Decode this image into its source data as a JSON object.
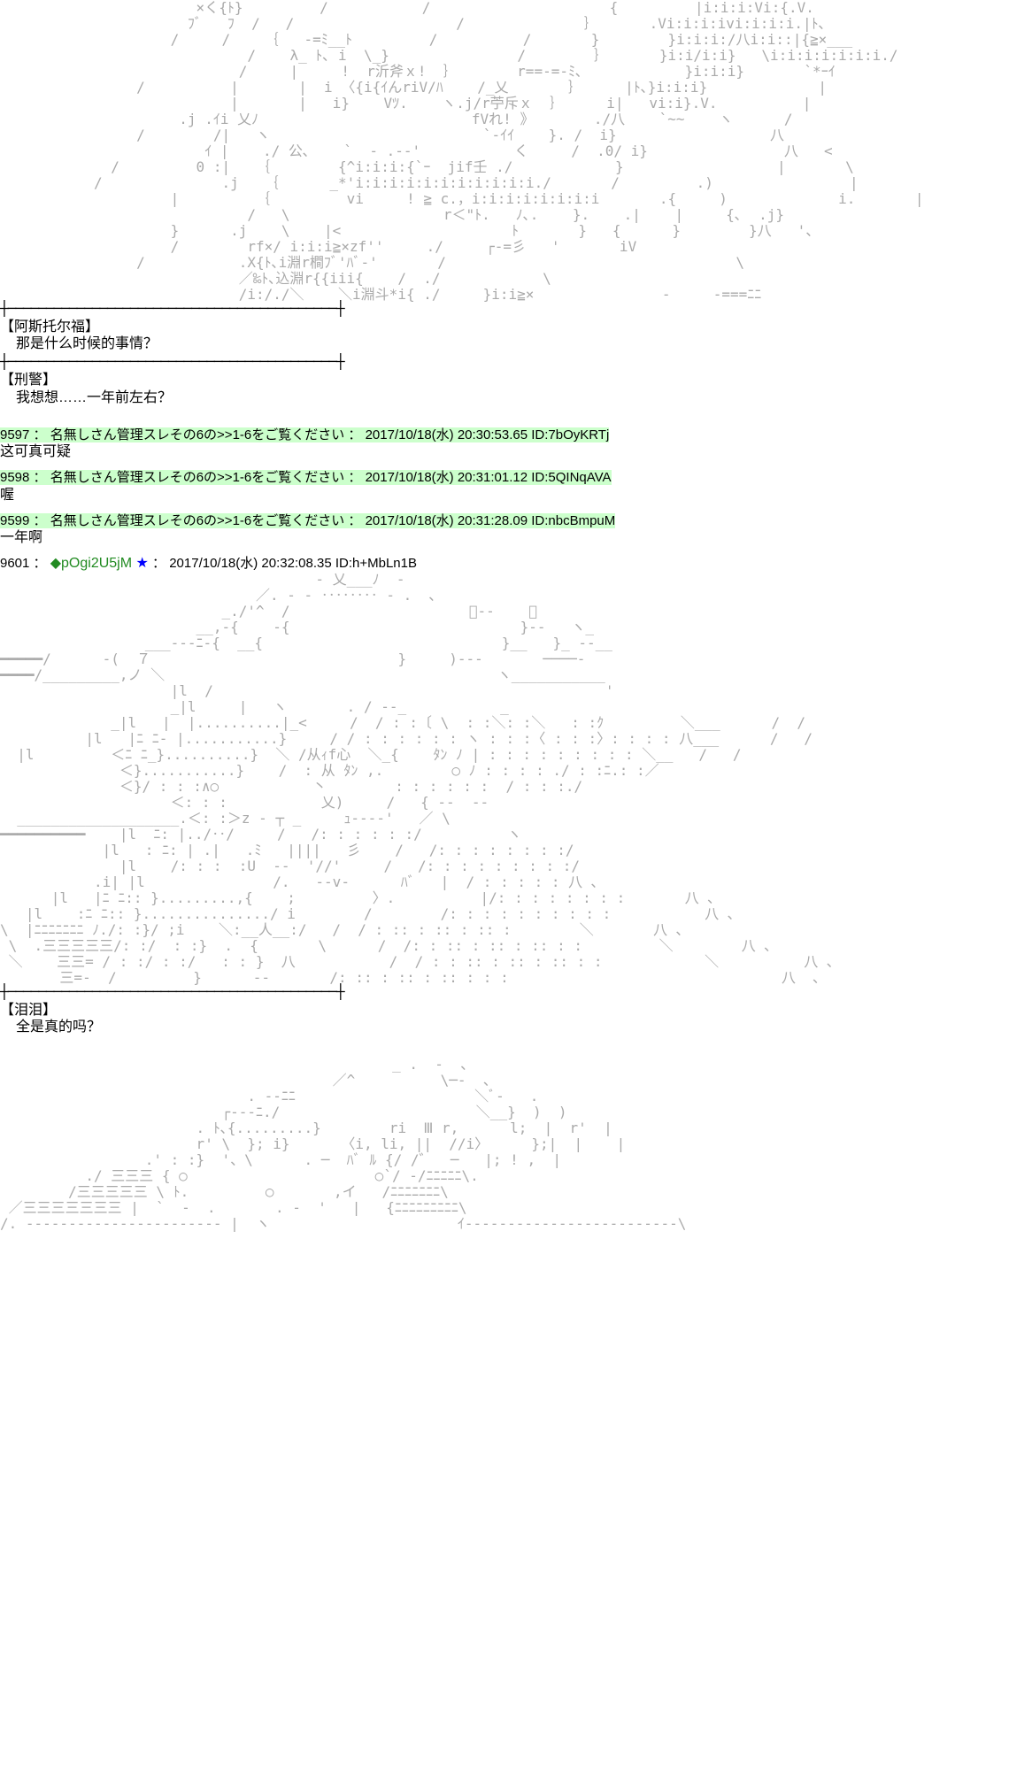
{
  "aa1": "                       ×く{ﾄ}         /           /                     {         |i:i:i:Vi:{.V.\n                      ﾌﾞ   ﾌ  /   /                   /              ｝      .Vi:i:i:ivi:i:i:i.|ﾄ､\n                    /     /    ｛   -=ﾐ__ﾄ         /          /       }        }i:i:i:/八i:i::|{≧×___\n                             /    λ_ ﾄ､ i  \\_}               /        ｝      }i:i/i:i}   \\i:i:i:i:i:i:i./\n                            /     |     !  r沂斧ｘ!  ｝       r==-=-ﾐ､            }i:i:i}       `*ｰｲ\n                /          |       |  i 〈{i{ｲんriV/ﾊ    /_乂       ｝     |ﾄ､}i:i:i}             |\n                           |       |   i}    Vﾂ.    ヽ.j/r苧斥ｘ  ｝     i|   vi:i}.V.          |\n                     .j .ｲi 乂ﾉ                         fVれ! 》       ./八    `~~    ヽ      /\n                /        /|   ヽ                         `-ｲｲ    }. /  i}                  八\n                        ｲ |    ./ 公､    `  ‐ .--'           く     /  .0/ i}                八   <\n             /         0 :|   ｛        {^i:i:i:{`ｰ  jif壬 ./            }                  |       \\\n           /              .j   ｛      _*'i:i:i:i:i:i:i:i:i:i:i./       /         .)                |\n                    |         ｛         vi     ! ≧ c.，i:i:i:i:i:i:i:i       .{     )             i.       |\n                             /   \\                  r＜\"ﾄ.   ﾉ､.    }.    .|    |     {､  .j}\n                    }      .j    \\    |<                    ﾄ       }   {      }        }八   '、\n                    /        rf×/ i:i:i≧×zf''     ./     ┌-=彡   '       iV\n                /           .X{ﾄ､i淵r橺ﾌﾞ'ﾊﾞ-'       /                                  \\\n                            ／‰ﾄ､込淵r{{iii{    /  ./            \\\n                            /i:/./＼    ＼i淵斗*i{ ./     }i:i≧×               ‐     -===ﾆﾆ",
  "dlg1_name": "【阿斯托尔福】",
  "dlg1_line": "那是什么时候的事情？",
  "dlg2_name": "【刑警】",
  "dlg2_line": "我想想……一年前左右？",
  "p9597_head": "9597 ： 名無しさん管理スレその6の>>1-6をご覧ください ： 2017/10/18(水) 20:30:53.65 ID:7bOyKRTj",
  "p9597_body": "这可真可疑",
  "p9598_head": "9598 ： 名無しさん管理スレその6の>>1-6をご覧ください ： 2017/10/18(水) 20:31:01.12 ID:5QINqAVA",
  "p9598_body": "喔",
  "p9599_head": "9599 ： 名無しさん管理スレその6の>>1-6をご覧ください ： 2017/10/18(水) 20:31:28.09 ID:nbcBmpuM",
  "p9599_body": "一年啊",
  "p9601_num": "9601 ： ",
  "p9601_trip": "◆pOgi2U5jM",
  "p9601_star": " ★",
  "p9601_rest": " ： 2017/10/18(水) 20:32:08.35 ID:h+MbLn1B",
  "aa2": "                                     - 乂___ﾉ  -\n                              ／. - - ‥‥‥‥ - .  ､\n                          _./'^  /                     ﾞ--    ＼\n                       __,-{    -{                           }--   ヽ_\n                 ___---ﾆ-{  __{                            }__   }_ --__\n━━━━━/      -(  ７                             }     )---       ────-\n━━━━/_________,ノ ＼                                       ヽ___________\n                    |l  /                                              '\n                    _|l     |   ヽ       . / --_           _\n             _|l   |  |..........|_<     /  / : :〔 \\  : :＼: :＼   : :ｸ         ＼___      /  /\n          |l   |ﾆ ﾆ- |...........}     / / : : : : : : ヽ : : :〈 : : :〉: : : : 八___      /   /\n  |l         ＜ﾆ ﾆ_}..........}  ＼ /从ｨf心  ＼_{    ﾀﾝ ﾉ | : : : : : : : : : ＼__   /   /\n              ＜}...........}    /  : 从 ﾀﾝ ,.        ○ ﾉ : : : : ./ : :ﾆ.: :／\n              ＜}/ : : :∧○           丶        : : : : : :  / : : :./\n                    ＜: : :           乂)     /   { --  --\n  ___________________.＜: :＞z - ┬ _     ｭ----'   ／ \\\n━━━━━━━━━━    |l  ﾆ: |../‥/     /   /: : : : : :/          ヽ\n            |l   : ﾆ: | .|   .ﾐ   ||||   彡    /   /: : : : : : : :/\n              |l    /: : :  :U  --  '//'     /   /: : : : : : : : :/\n           .i| |l               /.   --v-      ﾊﾞ   |  / : : : : : 八 ､\n      |l   |ﾆ ﾆ:: }.........,{    ;         〉.          |/: : : : : : : :       八 ､\n   |l    :ﾆ ﾆ:: }.............../ i        /        /: : : : : : : : : :           八 ､\n\\  |ﾆﾆﾆﾆﾆﾆﾆ ﾉ./: :}/ ;i    ＼:__人__:/   /  / : :: : :: : :: :        ＼       八 ､\n \\  .三三三三三/: :/  : :}  .  {       \\      /  /: : :: : :: : :: : :         ＼        八 ､\n ＼    三三= / : :/ : :/   : : }  八           /  / : : :: : :: : :: : :            ＼          八 ､\n       三=-  /         }      --       /: :: : :: : :: : : :                                八  ､",
  "dlg3_name": "【泪泪】",
  "dlg3_line": "全是真的吗？",
  "aa3": "                                              _ .  -  、\n                                       ／^          \\─-  、\n                             . --ﾆﾆ                     ＼ﾞ-   .\n                          ┌---ﾆ./                       ＼__}  )  )\n                       . ﾄ､{.........}        ri  Ⅲ r,      l;  |  r'  |\n                       r' \\  }; i}      〈i, li, ||  //i〉     };|  |    |\n                 .' : :}  '、\\      . ─  ﾊﾞ ﾙ {/ /゛  ─   |; ! ,  |\n          ./ 三三三 { ○                      ○`/ -/ﾆﾆﾆﾆﾆ\\.\n        /三三三三三 \\ ﾄ.         ○       ,イ   /ﾆﾆﾆﾆﾆﾆﾆ\\\n ／三三三三三三三 |  `  -  .       . -  '   |   {ﾆﾆﾆﾆﾆﾆﾆﾆﾆ\\\n/. ----------------------- |  ヽ                      ｲ-------------------------\\",
  "hr_top": "┼───────────────────────────────────────────┼",
  "hr_bot": "┼───────────────────────────────────────────┼"
}
